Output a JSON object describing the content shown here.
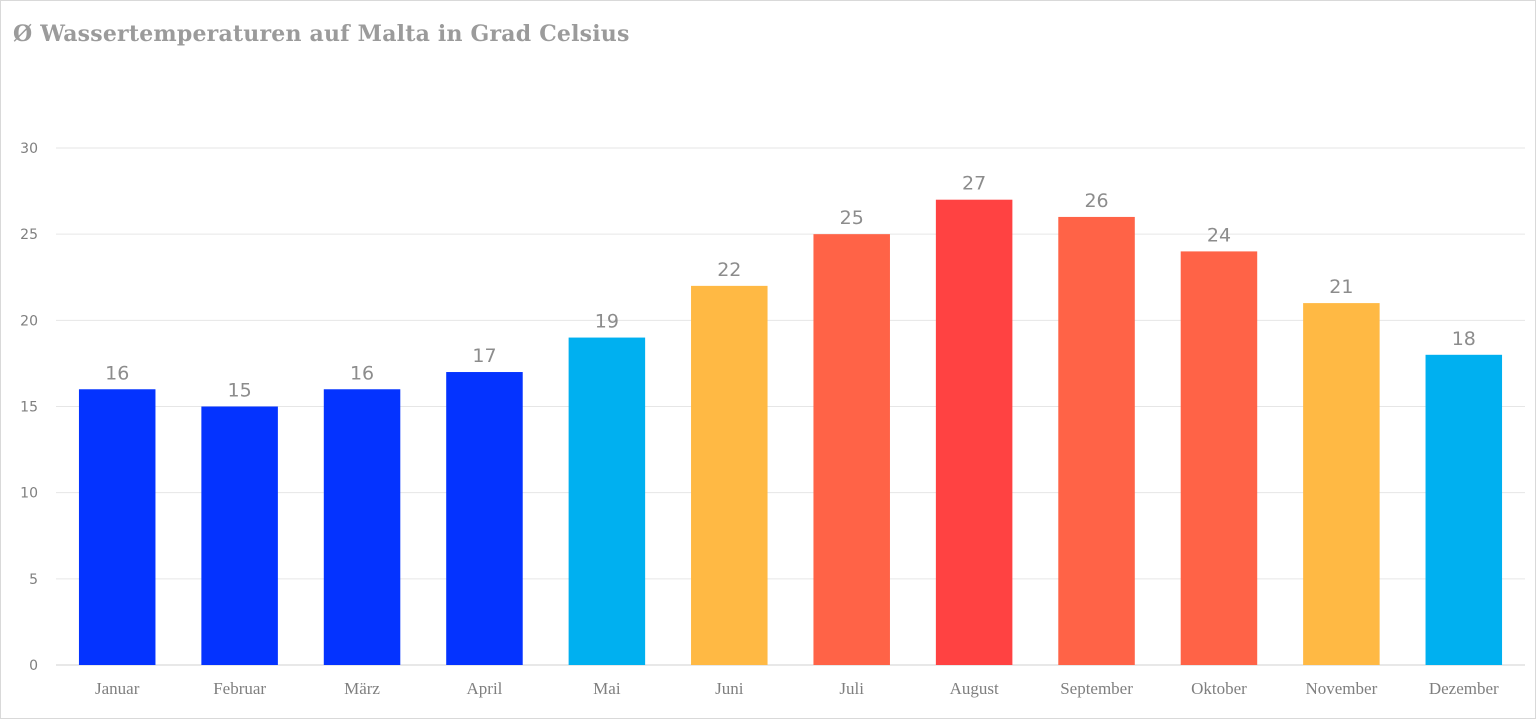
{
  "chart_data": {
    "type": "bar",
    "title": "Ø Wassertemperaturen auf  Malta in Grad Celsius",
    "xlabel": "",
    "ylabel": "",
    "ylim": [
      0,
      30
    ],
    "yticks": [
      0,
      5,
      10,
      15,
      20,
      25,
      30
    ],
    "grid": true,
    "legend": "none",
    "categories": [
      "Januar",
      "Februar",
      "März",
      "April",
      "Mai",
      "Juni",
      "Juli",
      "August",
      "September",
      "Oktober",
      "November",
      "Dezember"
    ],
    "values": [
      16,
      15,
      16,
      17,
      19,
      22,
      25,
      27,
      26,
      24,
      21,
      18
    ],
    "colors": [
      "#0433ff",
      "#0433ff",
      "#0433ff",
      "#0433ff",
      "#00b0f0",
      "#ffb944",
      "#ff6347",
      "#ff4242",
      "#ff6347",
      "#ff6347",
      "#ffb944",
      "#00b0f0"
    ]
  }
}
